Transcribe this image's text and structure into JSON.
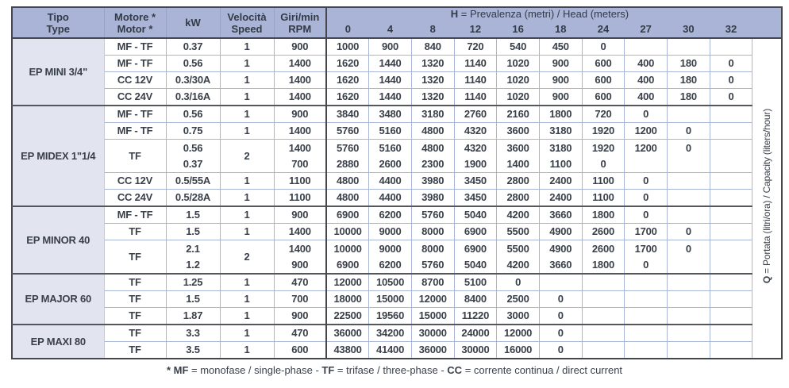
{
  "header": {
    "col_tipo": {
      "line1": "Tipo",
      "line2": "Type"
    },
    "col_motor": {
      "line1": "Motore *",
      "line2": "Motor *"
    },
    "col_kw": "kW",
    "col_speed": {
      "line1": "Velocità",
      "line2": "Speed"
    },
    "col_rpm": {
      "line1": "Giri/min",
      "line2": "RPM"
    },
    "head_title": {
      "prefix": "H",
      "rest": " = Prevalenza (metri) / Head (meters)"
    },
    "ticks": [
      "0",
      "4",
      "8",
      "12",
      "16",
      "18",
      "24",
      "27",
      "30",
      "32"
    ]
  },
  "groups": [
    {
      "name": "EP MINI 3/4\"",
      "rows": [
        {
          "motor": "MF - TF",
          "kw": "0.37",
          "speed": "1",
          "rpm": "900",
          "values": [
            "1000",
            "900",
            "840",
            "720",
            "540",
            "450",
            "0",
            "",
            "",
            ""
          ]
        },
        {
          "motor": "MF - TF",
          "kw": "0.56",
          "speed": "1",
          "rpm": "1400",
          "values": [
            "1620",
            "1440",
            "1320",
            "1140",
            "1020",
            "900",
            "600",
            "400",
            "180",
            "0"
          ]
        },
        {
          "motor": "CC 12V",
          "kw": "0.3/30A",
          "speed": "1",
          "rpm": "1400",
          "values": [
            "1620",
            "1440",
            "1320",
            "1140",
            "1020",
            "900",
            "600",
            "400",
            "180",
            "0"
          ]
        },
        {
          "motor": "CC 24V",
          "kw": "0.3/16A",
          "speed": "1",
          "rpm": "1400",
          "values": [
            "1620",
            "1440",
            "1320",
            "1140",
            "1020",
            "900",
            "600",
            "400",
            "180",
            "0"
          ]
        }
      ]
    },
    {
      "name": "EP MIDEX 1\"1/4",
      "rows": [
        {
          "motor": "MF - TF",
          "kw": "0.56",
          "speed": "1",
          "rpm": "900",
          "values": [
            "3840",
            "3480",
            "3180",
            "2760",
            "2160",
            "1800",
            "720",
            "0",
            "",
            ""
          ]
        },
        {
          "motor": "MF - TF",
          "kw": "0.75",
          "speed": "1",
          "rpm": "1400",
          "values": [
            "5760",
            "5160",
            "4800",
            "4320",
            "3600",
            "3180",
            "1920",
            "1200",
            "0",
            ""
          ]
        },
        {
          "motor": "TF",
          "kw": "0.56\n0.37",
          "speed": "2",
          "rpm": "1400\n700",
          "merged": true,
          "values": [
            "5760\n2880",
            "5160\n2600",
            "4800\n2300",
            "4320\n1900",
            "3600\n1400",
            "3180\n1100",
            "1920\n0",
            "1200\n ",
            "0\n ",
            ""
          ]
        },
        {
          "motor": "CC 12V",
          "kw": "0.5/55A",
          "speed": "1",
          "rpm": "1100",
          "values": [
            "4800",
            "4400",
            "3980",
            "3450",
            "2800",
            "2400",
            "1100",
            "0",
            "",
            ""
          ]
        },
        {
          "motor": "CC 24V",
          "kw": "0.5/28A",
          "speed": "1",
          "rpm": "1100",
          "values": [
            "4800",
            "4400",
            "3980",
            "3450",
            "2800",
            "2400",
            "1100",
            "0",
            "",
            ""
          ]
        }
      ]
    },
    {
      "name": "EP MINOR 40",
      "rows": [
        {
          "motor": "MF - TF",
          "kw": "1.5",
          "speed": "1",
          "rpm": "900",
          "values": [
            "6900",
            "6200",
            "5760",
            "5040",
            "4200",
            "3660",
            "1800",
            "0",
            "",
            ""
          ]
        },
        {
          "motor": "TF",
          "kw": "1.5",
          "speed": "1",
          "rpm": "1400",
          "values": [
            "10000",
            "9000",
            "8000",
            "6900",
            "5500",
            "4900",
            "2600",
            "1700",
            "0",
            ""
          ]
        },
        {
          "motor": "TF",
          "kw": "2.1\n1.2",
          "speed": "2",
          "rpm": "1400\n900",
          "merged": true,
          "values": [
            "10000\n6900",
            "9000\n6200",
            "8000\n5760",
            "6900\n5040",
            "5500\n4200",
            "4900\n3660",
            "2600\n1800",
            "1700\n0",
            "0\n ",
            ""
          ]
        }
      ]
    },
    {
      "name": "EP MAJOR 60",
      "rows": [
        {
          "motor": "TF",
          "kw": "1.25",
          "speed": "1",
          "rpm": "470",
          "values": [
            "12000",
            "10500",
            "8700",
            "5100",
            "0",
            "",
            "",
            "",
            "",
            ""
          ]
        },
        {
          "motor": "TF",
          "kw": "1.5",
          "speed": "1",
          "rpm": "700",
          "values": [
            "18000",
            "15000",
            "12000",
            "8400",
            "2500",
            "0",
            "",
            "",
            "",
            ""
          ]
        },
        {
          "motor": "TF",
          "kw": "1.87",
          "speed": "1",
          "rpm": "900",
          "values": [
            "22500",
            "19560",
            "15000",
            "11220",
            "3000",
            "0",
            "",
            "",
            "",
            ""
          ]
        }
      ]
    },
    {
      "name": "EP MAXI 80",
      "rows": [
        {
          "motor": "TF",
          "kw": "3.3",
          "speed": "1",
          "rpm": "470",
          "values": [
            "36000",
            "34200",
            "30000",
            "24000",
            "12000",
            "0",
            "",
            "",
            "",
            ""
          ]
        },
        {
          "motor": "TF",
          "kw": "3.5",
          "speed": "1",
          "rpm": "600",
          "values": [
            "43800",
            "41400",
            "36000",
            "30000",
            "16000",
            "0",
            "",
            "",
            "",
            ""
          ]
        }
      ]
    }
  ],
  "side_label": {
    "prefix": "Q",
    "rest": " = Portata (litri/ora) / Capacity (liters/hour)"
  },
  "footnote": {
    "segments": [
      {
        "text": "* MF",
        "bold": true
      },
      {
        "text": " = monofase / single-phase - ",
        "bold": false
      },
      {
        "text": "TF",
        "bold": true
      },
      {
        "text": " = trifase / three-phase - ",
        "bold": false
      },
      {
        "text": "CC",
        "bold": true
      },
      {
        "text": " = corrente continua / direct current",
        "bold": false
      }
    ]
  },
  "colors": {
    "header_bg": "#a9b4d6",
    "group_column_bg": "#e2e4ef",
    "grid_light": "#a9b5d5",
    "grid_dark": "#45474d",
    "text": "#3a404a"
  }
}
